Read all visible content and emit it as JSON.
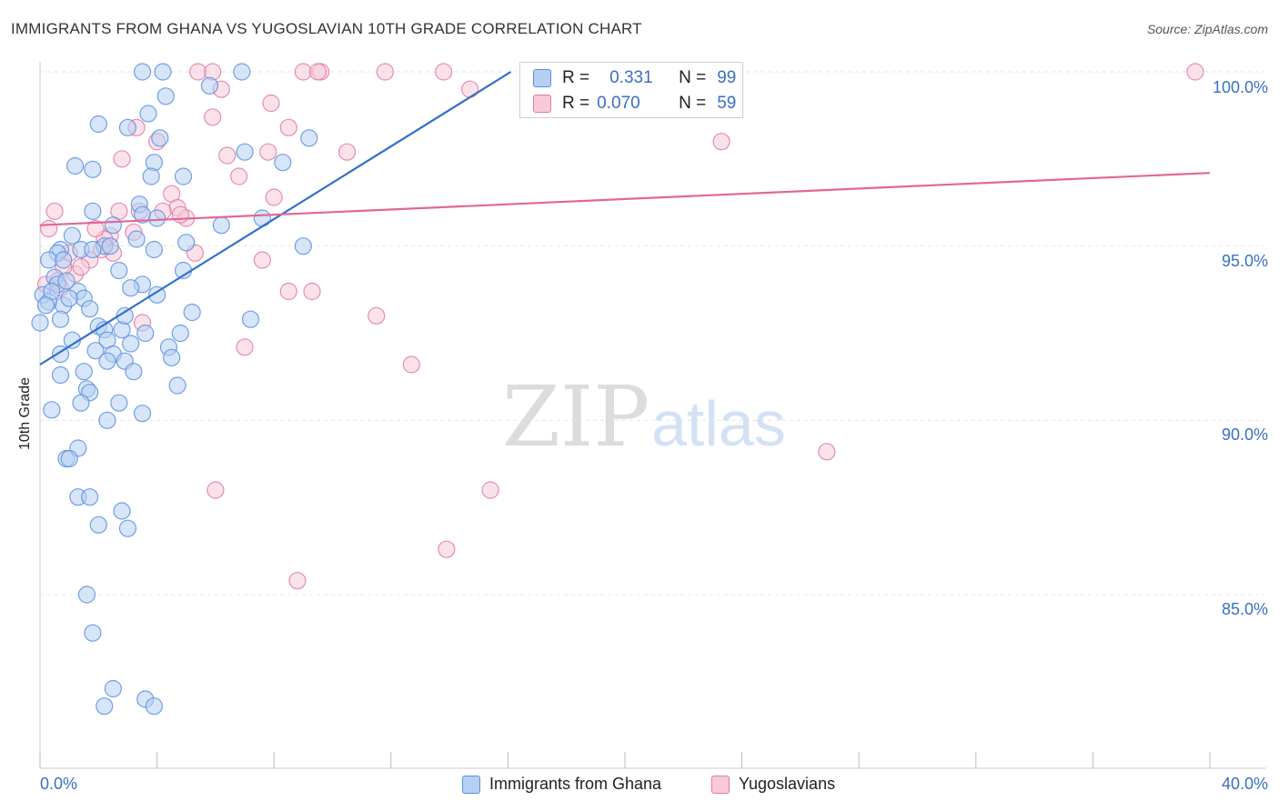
{
  "title": "IMMIGRANTS FROM GHANA VS YUGOSLAVIAN 10TH GRADE CORRELATION CHART",
  "source": "Source: ZipAtlas.com",
  "watermark": {
    "zip": "ZIP",
    "atlas": "atlas"
  },
  "legend_top": {
    "r_label": "R =",
    "n_label": "N =",
    "series": [
      {
        "r": "0.331",
        "n": "99"
      },
      {
        "r": "0.070",
        "n": "59"
      }
    ]
  },
  "legend_bottom": [
    "Immigrants from Ghana",
    "Yugoslavians"
  ],
  "colors": {
    "blue": "#5b8fe0",
    "blue_fill": "#b7cff3",
    "blue_line": "#2f6fc9",
    "pink": "#e07ba0",
    "pink_fill": "#f8cad9",
    "pink_line": "#e0679a",
    "tick_text": "#3a6fc4"
  },
  "chart_data": {
    "type": "scatter",
    "title": "IMMIGRANTS FROM GHANA VS YUGOSLAVIAN 10TH GRADE CORRELATION CHART",
    "xlabel": "",
    "ylabel": "10th Grade",
    "x_tick_labels": [
      "0.0%",
      "40.0%"
    ],
    "y_tick_labels": [
      "100.0%",
      "95.0%",
      "90.0%",
      "85.0%"
    ],
    "xlim": [
      0,
      40
    ],
    "ylim": [
      80.5,
      100.5
    ],
    "grid": true,
    "legend_placement": "top-center and bottom",
    "series": [
      {
        "name": "Immigrants from Ghana",
        "r": 0.331,
        "n": 99,
        "trend": {
          "x": [
            0,
            16.1
          ],
          "y": [
            91.6,
            100.0
          ]
        },
        "points": [
          [
            3.5,
            100
          ],
          [
            4.2,
            100
          ],
          [
            6.9,
            100
          ],
          [
            5.8,
            99.6
          ],
          [
            4.3,
            99.3
          ],
          [
            3.7,
            98.8
          ],
          [
            2.0,
            98.5
          ],
          [
            3.0,
            98.4
          ],
          [
            4.1,
            98.1
          ],
          [
            9.2,
            98.1
          ],
          [
            7.0,
            97.7
          ],
          [
            8.3,
            97.4
          ],
          [
            1.2,
            97.3
          ],
          [
            1.8,
            97.2
          ],
          [
            3.9,
            97.4
          ],
          [
            3.8,
            97.0
          ],
          [
            4.9,
            97.0
          ],
          [
            3.4,
            96.2
          ],
          [
            1.8,
            96.0
          ],
          [
            3.5,
            95.9
          ],
          [
            4.0,
            95.8
          ],
          [
            2.5,
            95.6
          ],
          [
            6.2,
            95.6
          ],
          [
            7.6,
            95.8
          ],
          [
            1.1,
            95.3
          ],
          [
            3.3,
            95.2
          ],
          [
            5.0,
            95.1
          ],
          [
            9.0,
            95.0
          ],
          [
            0.7,
            94.9
          ],
          [
            2.2,
            95.0
          ],
          [
            0.6,
            94.8
          ],
          [
            1.4,
            94.9
          ],
          [
            3.9,
            94.9
          ],
          [
            0.3,
            94.6
          ],
          [
            0.8,
            94.6
          ],
          [
            0.5,
            94.1
          ],
          [
            1.8,
            94.9
          ],
          [
            2.4,
            95.0
          ],
          [
            0.6,
            93.9
          ],
          [
            4.9,
            94.3
          ],
          [
            0.1,
            93.6
          ],
          [
            0.3,
            93.4
          ],
          [
            0.4,
            93.7
          ],
          [
            1.3,
            93.7
          ],
          [
            1.5,
            93.5
          ],
          [
            3.5,
            93.9
          ],
          [
            0.8,
            93.3
          ],
          [
            0.0,
            92.8
          ],
          [
            0.7,
            92.9
          ],
          [
            2.0,
            92.7
          ],
          [
            2.2,
            92.6
          ],
          [
            2.8,
            92.6
          ],
          [
            3.6,
            92.5
          ],
          [
            4.8,
            92.5
          ],
          [
            7.2,
            92.9
          ],
          [
            1.1,
            92.3
          ],
          [
            2.3,
            92.3
          ],
          [
            3.1,
            92.2
          ],
          [
            4.4,
            92.1
          ],
          [
            0.7,
            91.9
          ],
          [
            1.9,
            92.0
          ],
          [
            2.5,
            91.9
          ],
          [
            2.9,
            91.7
          ],
          [
            2.3,
            91.7
          ],
          [
            4.5,
            91.8
          ],
          [
            0.7,
            91.3
          ],
          [
            1.5,
            91.4
          ],
          [
            3.2,
            91.4
          ],
          [
            1.6,
            90.9
          ],
          [
            4.7,
            91.0
          ],
          [
            1.7,
            90.8
          ],
          [
            1.4,
            90.5
          ],
          [
            2.7,
            90.5
          ],
          [
            0.4,
            90.3
          ],
          [
            3.5,
            90.2
          ],
          [
            2.3,
            90.0
          ],
          [
            1.3,
            89.2
          ],
          [
            0.9,
            88.9
          ],
          [
            1.0,
            88.9
          ],
          [
            1.3,
            87.8
          ],
          [
            1.7,
            87.8
          ],
          [
            2.8,
            87.4
          ],
          [
            2.0,
            87.0
          ],
          [
            3.0,
            86.9
          ],
          [
            1.6,
            85.0
          ],
          [
            1.8,
            83.9
          ],
          [
            2.5,
            82.3
          ],
          [
            3.6,
            82.0
          ],
          [
            2.2,
            81.8
          ],
          [
            3.9,
            81.8
          ],
          [
            1.0,
            93.5
          ],
          [
            2.7,
            94.3
          ],
          [
            3.1,
            93.8
          ],
          [
            0.2,
            93.3
          ],
          [
            0.9,
            94.0
          ],
          [
            1.7,
            93.2
          ],
          [
            2.9,
            93.0
          ],
          [
            4.0,
            93.6
          ],
          [
            5.2,
            93.1
          ]
        ]
      },
      {
        "name": "Yugoslavians",
        "r": 0.07,
        "n": 59,
        "trend": {
          "x": [
            0,
            40
          ],
          "y": [
            95.6,
            97.1
          ]
        },
        "points": [
          [
            5.4,
            100
          ],
          [
            5.9,
            100
          ],
          [
            9.0,
            100
          ],
          [
            9.6,
            100
          ],
          [
            9.5,
            100
          ],
          [
            11.8,
            100
          ],
          [
            13.8,
            100
          ],
          [
            20.8,
            100
          ],
          [
            39.5,
            100
          ],
          [
            6.2,
            99.5
          ],
          [
            14.7,
            99.5
          ],
          [
            7.9,
            99.1
          ],
          [
            5.9,
            98.7
          ],
          [
            8.5,
            98.4
          ],
          [
            3.3,
            98.4
          ],
          [
            4.0,
            98.0
          ],
          [
            23.3,
            98.0
          ],
          [
            10.5,
            97.7
          ],
          [
            6.4,
            97.6
          ],
          [
            2.8,
            97.5
          ],
          [
            7.8,
            97.7
          ],
          [
            6.8,
            97.0
          ],
          [
            4.5,
            96.5
          ],
          [
            8.0,
            96.4
          ],
          [
            0.5,
            96.0
          ],
          [
            2.7,
            96.0
          ],
          [
            3.4,
            96.0
          ],
          [
            4.7,
            96.1
          ],
          [
            5.0,
            95.8
          ],
          [
            4.8,
            95.9
          ],
          [
            0.3,
            95.5
          ],
          [
            2.4,
            95.3
          ],
          [
            2.2,
            95.2
          ],
          [
            3.2,
            95.4
          ],
          [
            1.0,
            94.8
          ],
          [
            1.7,
            94.6
          ],
          [
            2.5,
            94.8
          ],
          [
            5.3,
            94.8
          ],
          [
            7.6,
            94.6
          ],
          [
            1.2,
            94.2
          ],
          [
            1.4,
            94.4
          ],
          [
            0.6,
            94.0
          ],
          [
            0.2,
            93.9
          ],
          [
            0.7,
            93.8
          ],
          [
            8.5,
            93.7
          ],
          [
            9.3,
            93.7
          ],
          [
            11.5,
            93.0
          ],
          [
            3.5,
            92.8
          ],
          [
            7.0,
            92.1
          ],
          [
            12.7,
            91.6
          ],
          [
            26.9,
            89.1
          ],
          [
            6.0,
            88.0
          ],
          [
            15.4,
            88.0
          ],
          [
            13.9,
            86.3
          ],
          [
            8.8,
            85.4
          ],
          [
            2.1,
            94.9
          ],
          [
            1.9,
            95.5
          ],
          [
            0.8,
            94.4
          ],
          [
            4.2,
            96.0
          ]
        ]
      }
    ]
  }
}
